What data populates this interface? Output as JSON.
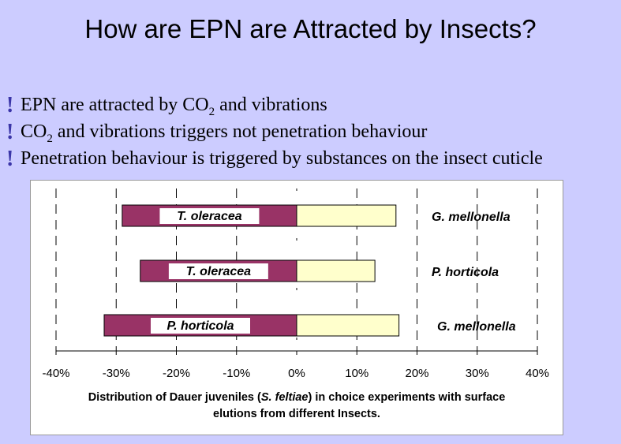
{
  "slide": {
    "title": "How are EPN are Attracted by Insects?",
    "bullets": [
      {
        "pre": "EPN are attracted by CO",
        "sub": "2",
        "post": " and vibrations"
      },
      {
        "pre": "CO",
        "sub": "2",
        "post": " and vibrations triggers not penetration behaviour"
      },
      {
        "pre": "Penetration behaviour is triggered by substances on the insect cuticle",
        "sub": "",
        "post": ""
      }
    ],
    "bullet_icon": "exclamation-icon",
    "bullet_color": "#3a35a8",
    "background": "#ccccff"
  },
  "chart_data": {
    "type": "bar",
    "orientation": "horizontal",
    "stacked": "diverging",
    "caption_parts": [
      "Distribution of Dauer juveniles (",
      "S. feltiae",
      ") in choice experiments with surface elutions from different Insects."
    ],
    "xlim": [
      -40,
      40
    ],
    "xticks": [
      "-40%",
      "-30%",
      "-20%",
      "-10%",
      "0%",
      "10%",
      "20%",
      "30%",
      "40%"
    ],
    "grid": "vertical dashed",
    "negative_color": "#993366",
    "positive_color": "#ffffcc",
    "rows": [
      {
        "left_label": "T. oleracea",
        "left_value": -29,
        "right_label": "G. mellonella",
        "right_value": 16.5
      },
      {
        "left_label": "T. oleracea",
        "left_value": -26,
        "right_label": "P. horticola",
        "right_value": 13
      },
      {
        "left_label": "P. horticola",
        "left_value": -32,
        "right_label": "G. mellonella",
        "right_value": 17
      }
    ]
  }
}
